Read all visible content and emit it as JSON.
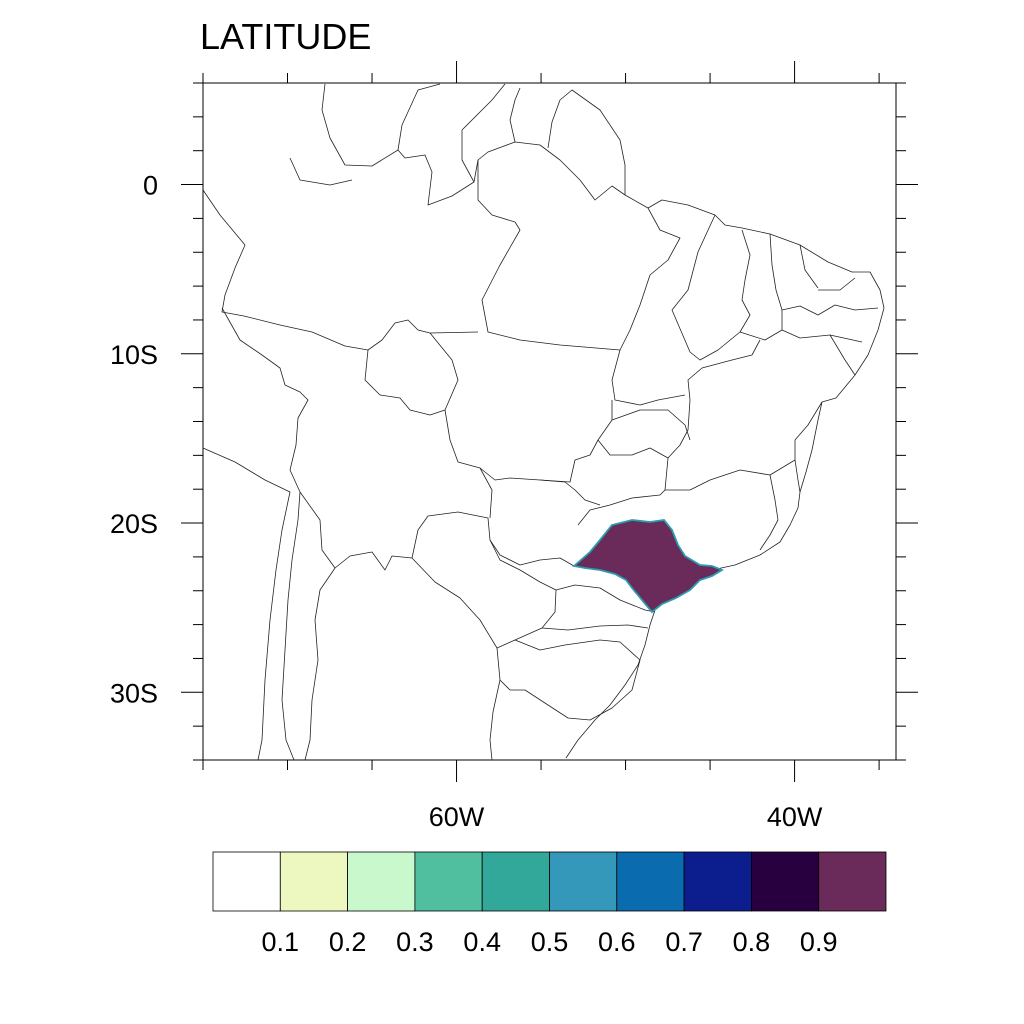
{
  "title": "LATITUDE",
  "map": {
    "region": "Brazil and surroundings",
    "highlighted_state": "São Paulo",
    "highlight_color": "#6a2a5a",
    "highlight_outline_color": "#2a9db0"
  },
  "axes": {
    "y_ticks": [
      {
        "label": "0",
        "lat": 0
      },
      {
        "label": "10S",
        "lat": -10
      },
      {
        "label": "20S",
        "lat": -20
      },
      {
        "label": "30S",
        "lat": -30
      }
    ],
    "x_ticks": [
      {
        "label": "60W",
        "lon": -60
      },
      {
        "label": "40W",
        "lon": -40
      }
    ],
    "lon_range": [
      -75,
      -34
    ],
    "lat_range": [
      -34,
      6
    ]
  },
  "colorbar": {
    "colors": [
      "#ffffff",
      "#edf8c0",
      "#c8f8cc",
      "#4fbf9f",
      "#31a899",
      "#3398b9",
      "#0a6cae",
      "#0c1e8e",
      "#28003f",
      "#6a2a5a"
    ],
    "labels": [
      "0.1",
      "0.2",
      "0.3",
      "0.4",
      "0.5",
      "0.6",
      "0.7",
      "0.8",
      "0.9"
    ]
  }
}
